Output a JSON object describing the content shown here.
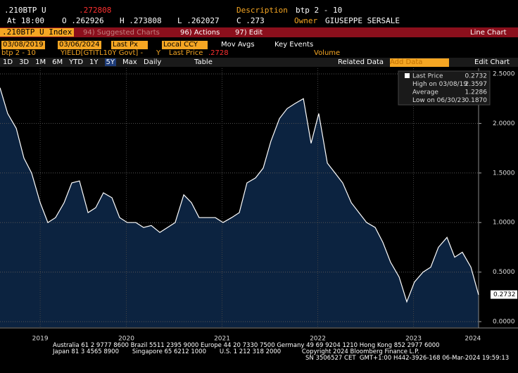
{
  "header": {
    "ticker": ".210BTP U",
    "price": ".272808",
    "description_label": "Description",
    "description": "btp 2 - 10",
    "at": "At 18:00",
    "open": "O .262926",
    "high": "H .273808",
    "low": "L .262027",
    "close": "C .273",
    "owner_label": "Owner",
    "owner": "GIUSEPPE SERSALE"
  },
  "toolbar": {
    "security": ".210BTP U Index",
    "suggested": "94) Suggested Charts",
    "actions": "96) Actions",
    "edit": "97) Edit",
    "chart_kind": "Line Chart"
  },
  "settings": {
    "start": "03/08/2019",
    "end": "03/06/2024",
    "field": "Last Px",
    "currency": "Local CCY",
    "mov_avgs": "Mov Avgs",
    "key_events": "Key Events"
  },
  "series_row": {
    "name": "btp 2 - 10",
    "source": "YIELD[GTITL10Y Govt] -",
    "axis": "Y",
    "last_label": "Last Price",
    "last": ".2728",
    "volume": "Volume"
  },
  "periods": [
    "1D",
    "3D",
    "1M",
    "6M",
    "YTD",
    "1Y",
    "5Y",
    "Max"
  ],
  "frequency": "Daily",
  "table": "Table",
  "related": "Related Data",
  "add_data": "Add Data",
  "edit_chart": "Edit Chart",
  "chart_data": {
    "type": "area",
    "color": "#ffffff",
    "fill": "#0c2340",
    "grid": true,
    "x": [
      2019.18,
      2019.26,
      2019.35,
      2019.43,
      2019.51,
      2019.6,
      2019.68,
      2019.76,
      2019.85,
      2019.93,
      2020.01,
      2020.1,
      2020.18,
      2020.26,
      2020.35,
      2020.43,
      2020.51,
      2020.6,
      2020.68,
      2020.76,
      2020.85,
      2020.93,
      2021.01,
      2021.1,
      2021.18,
      2021.26,
      2021.35,
      2021.43,
      2021.51,
      2021.6,
      2021.68,
      2021.76,
      2021.85,
      2021.93,
      2022.01,
      2022.1,
      2022.18,
      2022.26,
      2022.35,
      2022.43,
      2022.51,
      2022.6,
      2022.68,
      2022.76,
      2022.85,
      2022.93,
      2023.01,
      2023.1,
      2023.18,
      2023.26,
      2023.35,
      2023.43,
      2023.51,
      2023.6,
      2023.68,
      2023.76,
      2023.85,
      2023.93,
      2024.01,
      2024.1,
      2024.18
    ],
    "values": [
      2.36,
      2.1,
      1.95,
      1.65,
      1.5,
      1.2,
      1.0,
      1.05,
      1.2,
      1.4,
      1.42,
      1.1,
      1.15,
      1.3,
      1.25,
      1.05,
      1.0,
      1.0,
      0.95,
      0.97,
      0.9,
      0.95,
      1.0,
      1.28,
      1.2,
      1.05,
      1.05,
      1.05,
      1.0,
      1.05,
      1.1,
      1.4,
      1.45,
      1.55,
      1.82,
      2.05,
      2.15,
      2.2,
      2.25,
      1.8,
      2.1,
      1.6,
      1.5,
      1.4,
      1.2,
      1.1,
      1.0,
      0.95,
      0.8,
      0.6,
      0.45,
      0.2,
      0.4,
      0.5,
      0.55,
      0.75,
      0.85,
      0.65,
      0.7,
      0.55,
      0.27
    ],
    "xlim": [
      2019.18,
      2024.18
    ],
    "ylim": [
      0,
      2.5
    ],
    "yticks": [
      {
        "value": 0,
        "label": "0.0000"
      },
      {
        "value": 0.5,
        "label": "0.5000"
      },
      {
        "value": 1,
        "label": "1.0000"
      },
      {
        "value": 1.5,
        "label": "1.5000"
      },
      {
        "value": 2,
        "label": "2.0000"
      },
      {
        "value": 2.5,
        "label": "2.5000"
      }
    ],
    "xticks": [
      {
        "value": 2019.6,
        "label": "2019"
      },
      {
        "value": 2020.5,
        "label": "2020"
      },
      {
        "value": 2021.5,
        "label": "2021"
      },
      {
        "value": 2022.5,
        "label": "2022"
      },
      {
        "value": 2023.5,
        "label": "2023"
      },
      {
        "value": 2024.12,
        "label": "2024"
      }
    ],
    "last_value": {
      "value": 0.2732,
      "label": "0.2732"
    },
    "legend": [
      {
        "label": "Last Price",
        "value": "0.2732"
      },
      {
        "label": "High on 03/08/19",
        "value": "2.3597"
      },
      {
        "label": "Average",
        "value": "1.2286"
      },
      {
        "label": "Low on 06/30/23",
        "value": "0.1870"
      }
    ]
  },
  "footer": [
    "Australia 61 2 9777 8600 Brazil 5511 2395 9000 Europe 44 20 7330 7500 Germany 49 69 9204 1210 Hong Kong 852 2977 6000",
    "Japan 81 3 4565 8900       Singapore 65 6212 1000       U.S. 1 212 318 2000           Copyright 2024 Bloomberg Finance L.P.",
    "SN 3506527 CET  GMT+1:00 H442-3926-168 06-Mar-2024 19:59:13"
  ]
}
